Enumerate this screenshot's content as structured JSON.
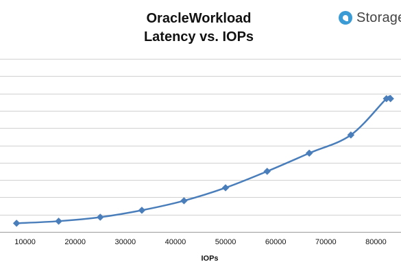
{
  "chart_data": {
    "type": "line",
    "title": "OracleWorkload",
    "subtitle": "Latency vs. IOPs",
    "xlabel": "IOPs",
    "ylabel": "",
    "xlim": [
      5000,
      85000
    ],
    "x_ticks": [
      10000,
      20000,
      30000,
      40000,
      50000,
      60000,
      70000,
      80000
    ],
    "ylim": [
      0,
      10
    ],
    "y_gridlines": 10,
    "y_tick_labels_visible": false,
    "grid": true,
    "legend": "none",
    "series": [
      {
        "color": "#4a7ebb",
        "marker": "diamond",
        "x": [
          8300,
          16700,
          25000,
          33300,
          41700,
          50000,
          58300,
          66700,
          75000,
          82100,
          82900
        ],
        "y": [
          0.5,
          0.62,
          0.85,
          1.25,
          1.8,
          2.55,
          3.5,
          4.55,
          5.6,
          7.7,
          7.7
        ]
      }
    ]
  },
  "brand": {
    "name": "Storage",
    "logo_color": "#3a9bd5"
  }
}
